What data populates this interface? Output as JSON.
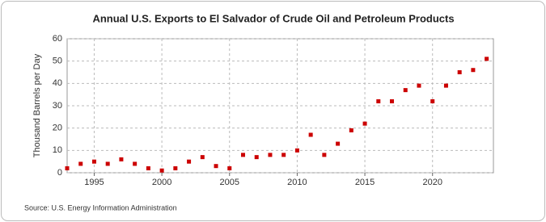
{
  "chart_data": {
    "type": "scatter",
    "title": "Annual U.S. Exports to El Salvador of Crude Oil and Petroleum Products",
    "y_label": "Thousand Barrels per Day",
    "source": "Source: U.S. Energy Information Administration",
    "x": [
      1993,
      1994,
      1995,
      1996,
      1997,
      1998,
      1999,
      2000,
      2001,
      2002,
      2003,
      2004,
      2005,
      2006,
      2007,
      2008,
      2009,
      2010,
      2011,
      2012,
      2013,
      2014,
      2015,
      2016,
      2017,
      2018,
      2019,
      2020,
      2021,
      2022,
      2023,
      2024
    ],
    "values": [
      2,
      4,
      5,
      4,
      6,
      4,
      2,
      1,
      2,
      5,
      7,
      3,
      2,
      8,
      7,
      8,
      8,
      10,
      17,
      8,
      13,
      19,
      22,
      32,
      32,
      37,
      39,
      32,
      39,
      45,
      46,
      51
    ],
    "color": "#cc0000",
    "xlim": [
      1993,
      2024.5
    ],
    "xticks": [
      1995,
      2000,
      2005,
      2010,
      2015,
      2020
    ],
    "ylim": [
      0,
      60
    ],
    "yticks": [
      0,
      10,
      20,
      30,
      40,
      50,
      60
    ],
    "grid": true
  }
}
